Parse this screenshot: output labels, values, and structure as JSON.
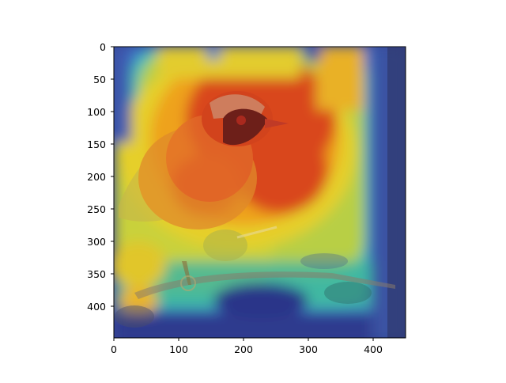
{
  "figure": {
    "x_ticks": [
      "0",
      "100",
      "200",
      "300",
      "400"
    ],
    "y_ticks": [
      "0",
      "50",
      "100",
      "150",
      "200",
      "250",
      "300",
      "350",
      "400"
    ]
  },
  "image": {
    "subject": "bird",
    "overlay": "heatmap",
    "colors": {
      "hot": "#d43a16",
      "warm": "#f0a81a",
      "yellow": "#e6d52a",
      "teal": "#49c7a8",
      "cool": "#3c7fd6",
      "cold": "#28328e"
    }
  }
}
